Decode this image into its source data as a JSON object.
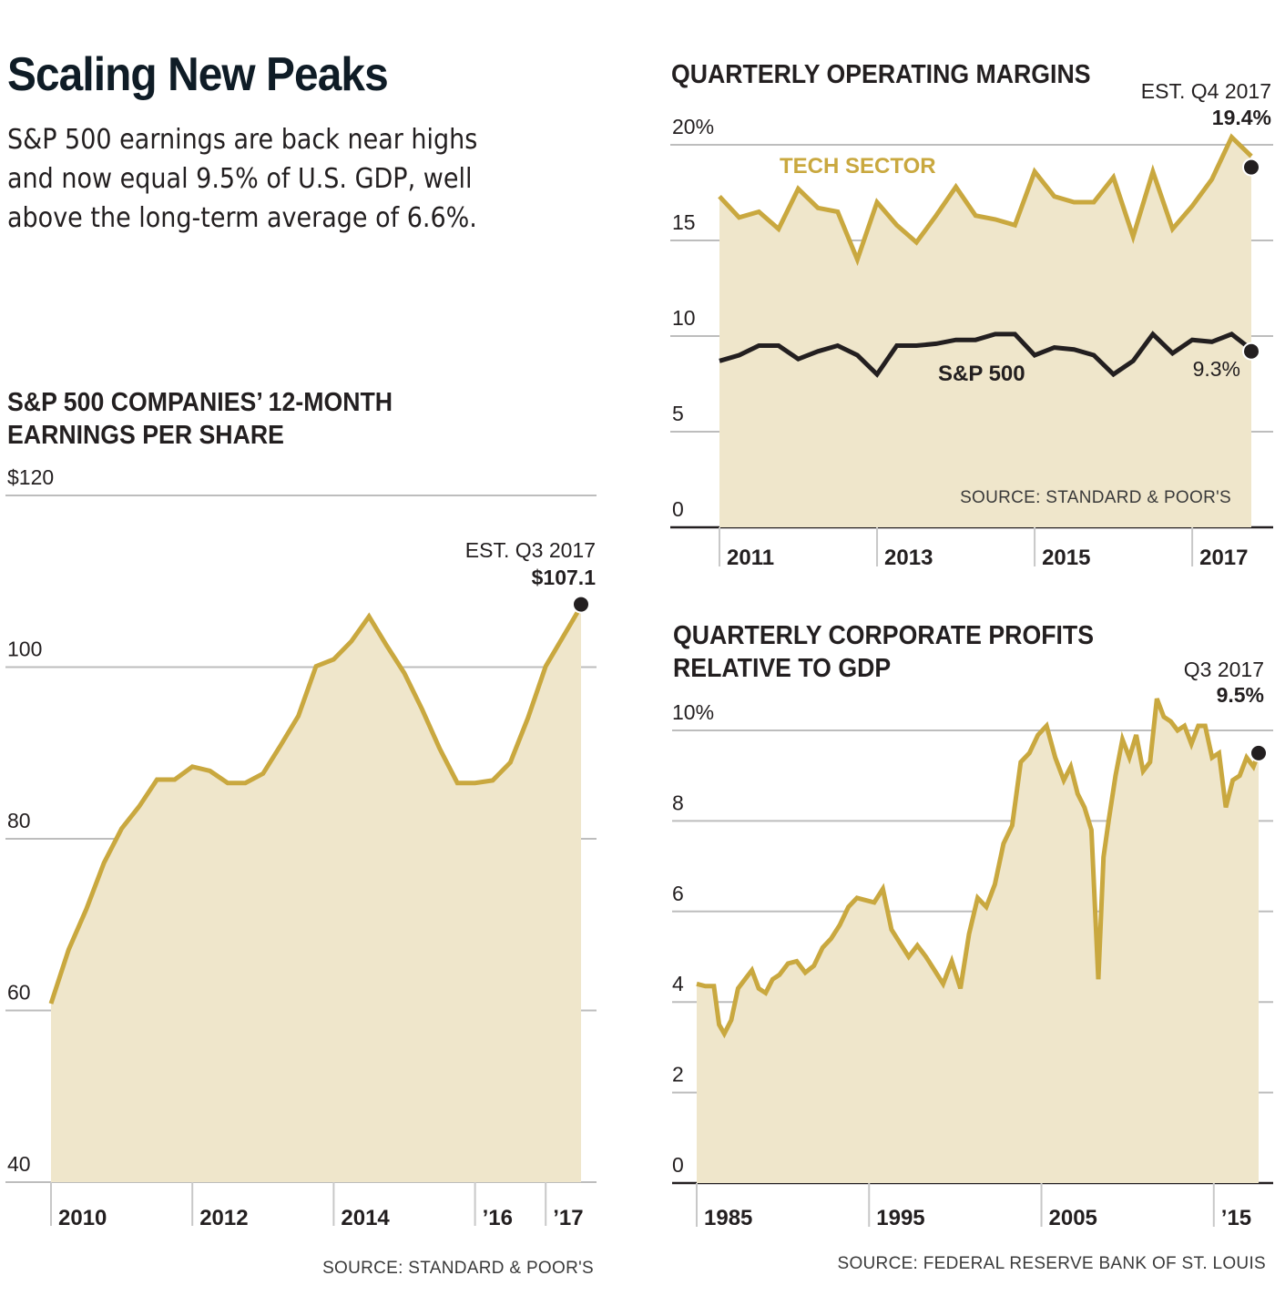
{
  "headline": "Scaling New Peaks",
  "dek": "S&P 500 earnings are back near highs and now equal 9.5% of U.S. GDP, well above the long-term average of 6.6%.",
  "colors": {
    "line": "#c9a83f",
    "fill": "#efe6cb",
    "sp500_line": "#231f20",
    "grid": "#bdbdbd",
    "text": "#231f20",
    "headline": "#0f1c26",
    "label_tech": "#c9a83f"
  },
  "chart_data": [
    {
      "id": "eps",
      "type": "area",
      "title_lines": [
        "S&P 500 COMPANIES’ 12-MONTH",
        "EARNINGS PER SHARE"
      ],
      "xlabel": "",
      "ylabel": "",
      "ylim": [
        40,
        120
      ],
      "y_ticks": [
        40,
        60,
        80,
        100,
        120
      ],
      "y_tick_labels": [
        "40",
        "60",
        "80",
        "100",
        "$120"
      ],
      "xlim": [
        2010.0,
        2017.75
      ],
      "x_ticks": [
        2010,
        2012,
        2014,
        2016,
        2017
      ],
      "x_tick_labels": [
        "2010",
        "2012",
        "2014",
        "’16",
        "’17"
      ],
      "grid": true,
      "x": [
        2010.0,
        2010.25,
        2010.5,
        2010.75,
        2011.0,
        2011.25,
        2011.5,
        2011.75,
        2012.0,
        2012.25,
        2012.5,
        2012.75,
        2013.0,
        2013.25,
        2013.5,
        2013.75,
        2014.0,
        2014.25,
        2014.5,
        2014.75,
        2015.0,
        2015.25,
        2015.5,
        2015.75,
        2016.0,
        2016.25,
        2016.5,
        2016.75,
        2017.0,
        2017.25,
        2017.5
      ],
      "series": [
        {
          "name": "EPS",
          "values": [
            60.8,
            67.1,
            71.8,
            77.2,
            81.2,
            83.8,
            86.9,
            86.9,
            88.4,
            87.9,
            86.5,
            86.5,
            87.6,
            90.9,
            94.3,
            100.1,
            100.9,
            103.0,
            105.9,
            102.5,
            99.3,
            95.1,
            90.5,
            86.5,
            86.5,
            86.8,
            88.9,
            94.1,
            100.1,
            103.6,
            107.1
          ]
        }
      ],
      "annotation": {
        "label": "EST. Q3 2017",
        "value": "$107.1"
      },
      "source": "SOURCE: STANDARD & POOR'S"
    },
    {
      "id": "margins",
      "type": "area",
      "title_lines": [
        "QUARTERLY OPERATING MARGINS"
      ],
      "xlabel": "",
      "ylabel": "",
      "ylim": [
        0,
        20
      ],
      "y_ticks": [
        0,
        5,
        10,
        15,
        20
      ],
      "y_tick_labels": [
        "0",
        "5",
        "10",
        "15",
        "20%"
      ],
      "xlim": [
        2010.9,
        2017.9
      ],
      "x_ticks": [
        2011,
        2013,
        2015,
        2017
      ],
      "x_tick_labels": [
        "2011",
        "2013",
        "2015",
        "2017"
      ],
      "grid": true,
      "x": [
        2011.0,
        2011.25,
        2011.5,
        2011.75,
        2012.0,
        2012.25,
        2012.5,
        2012.75,
        2013.0,
        2013.25,
        2013.5,
        2013.75,
        2014.0,
        2014.25,
        2014.5,
        2014.75,
        2015.0,
        2015.25,
        2015.5,
        2015.75,
        2016.0,
        2016.25,
        2016.5,
        2016.75,
        2017.0,
        2017.25,
        2017.5,
        2017.75
      ],
      "series": [
        {
          "name": "TECH SECTOR",
          "values": [
            17.3,
            16.2,
            16.5,
            15.6,
            17.7,
            16.7,
            16.5,
            14.0,
            17.0,
            15.8,
            14.9,
            16.3,
            17.8,
            16.3,
            16.1,
            15.8,
            18.6,
            17.3,
            17.0,
            17.0,
            18.3,
            15.2,
            18.6,
            15.6,
            16.8,
            18.2,
            20.4,
            19.4
          ]
        },
        {
          "name": "S&P 500",
          "values": [
            8.7,
            9.0,
            9.5,
            9.5,
            8.8,
            9.2,
            9.5,
            9.0,
            8.0,
            9.5,
            9.5,
            9.6,
            9.8,
            9.8,
            10.1,
            10.1,
            9.0,
            9.4,
            9.3,
            9.0,
            8.0,
            8.7,
            10.1,
            9.1,
            9.8,
            9.7,
            10.1,
            9.3
          ]
        }
      ],
      "annotation": {
        "label": "EST. Q4 2017",
        "value": "19.4%",
        "sp500_value": "9.3%"
      },
      "source": "SOURCE: STANDARD & POOR'S"
    },
    {
      "id": "profits_gdp",
      "type": "area",
      "title_lines": [
        "QUARTERLY CORPORATE PROFITS",
        "RELATIVE TO GDP"
      ],
      "xlabel": "",
      "ylabel": "",
      "ylim": [
        0,
        10
      ],
      "y_ticks": [
        0,
        2,
        4,
        6,
        8,
        10
      ],
      "y_tick_labels": [
        "0",
        "2",
        "4",
        "6",
        "8",
        "10%"
      ],
      "xlim": [
        1984.9,
        2017.8
      ],
      "x_ticks": [
        1985,
        1995,
        2005,
        2015
      ],
      "x_tick_labels": [
        "1985",
        "1995",
        "2005",
        "’15"
      ],
      "grid": true,
      "x": [
        1985.0,
        1985.5,
        1986.0,
        1986.3,
        1986.6,
        1987.0,
        1987.4,
        1987.8,
        1988.2,
        1988.6,
        1989.0,
        1989.4,
        1989.8,
        1990.3,
        1990.8,
        1991.3,
        1991.8,
        1992.3,
        1992.8,
        1993.3,
        1993.8,
        1994.3,
        1994.8,
        1995.3,
        1995.8,
        1996.3,
        1996.8,
        1997.3,
        1997.8,
        1998.3,
        1998.8,
        1999.3,
        1999.8,
        2000.3,
        2000.8,
        2001.3,
        2001.8,
        2002.3,
        2002.8,
        2003.3,
        2003.8,
        2004.3,
        2004.8,
        2005.3,
        2005.8,
        2006.3,
        2006.7,
        2007.1,
        2007.5,
        2007.9,
        2008.3,
        2008.6,
        2008.9,
        2009.3,
        2009.7,
        2010.1,
        2010.5,
        2010.9,
        2011.3,
        2011.7,
        2012.1,
        2012.5,
        2012.9,
        2013.3,
        2013.7,
        2014.1,
        2014.5,
        2014.9,
        2015.3,
        2015.7,
        2016.1,
        2016.5,
        2016.9,
        2017.3,
        2017.6
      ],
      "series": [
        {
          "name": "Corporate profits / GDP",
          "values": [
            4.4,
            4.35,
            4.35,
            3.5,
            3.3,
            3.6,
            4.3,
            4.5,
            4.7,
            4.3,
            4.2,
            4.5,
            4.6,
            4.85,
            4.9,
            4.65,
            4.8,
            5.2,
            5.4,
            5.7,
            6.1,
            6.3,
            6.25,
            6.2,
            6.5,
            5.6,
            5.3,
            5.0,
            5.25,
            5.0,
            4.7,
            4.4,
            4.9,
            4.3,
            5.5,
            6.3,
            6.1,
            6.6,
            7.5,
            7.9,
            9.3,
            9.5,
            9.9,
            10.1,
            9.4,
            8.9,
            9.2,
            8.6,
            8.3,
            7.8,
            4.5,
            7.2,
            8.0,
            9.0,
            9.8,
            9.4,
            9.9,
            9.1,
            9.3,
            10.7,
            10.3,
            10.2,
            10.0,
            10.1,
            9.7,
            10.1,
            10.1,
            9.4,
            9.5,
            8.3,
            8.9,
            9.0,
            9.4,
            9.2,
            9.5
          ]
        }
      ],
      "annotation": {
        "label": "Q3 2017",
        "value": "9.5%"
      },
      "source": "SOURCE: FEDERAL RESERVE BANK OF ST. LOUIS"
    }
  ]
}
